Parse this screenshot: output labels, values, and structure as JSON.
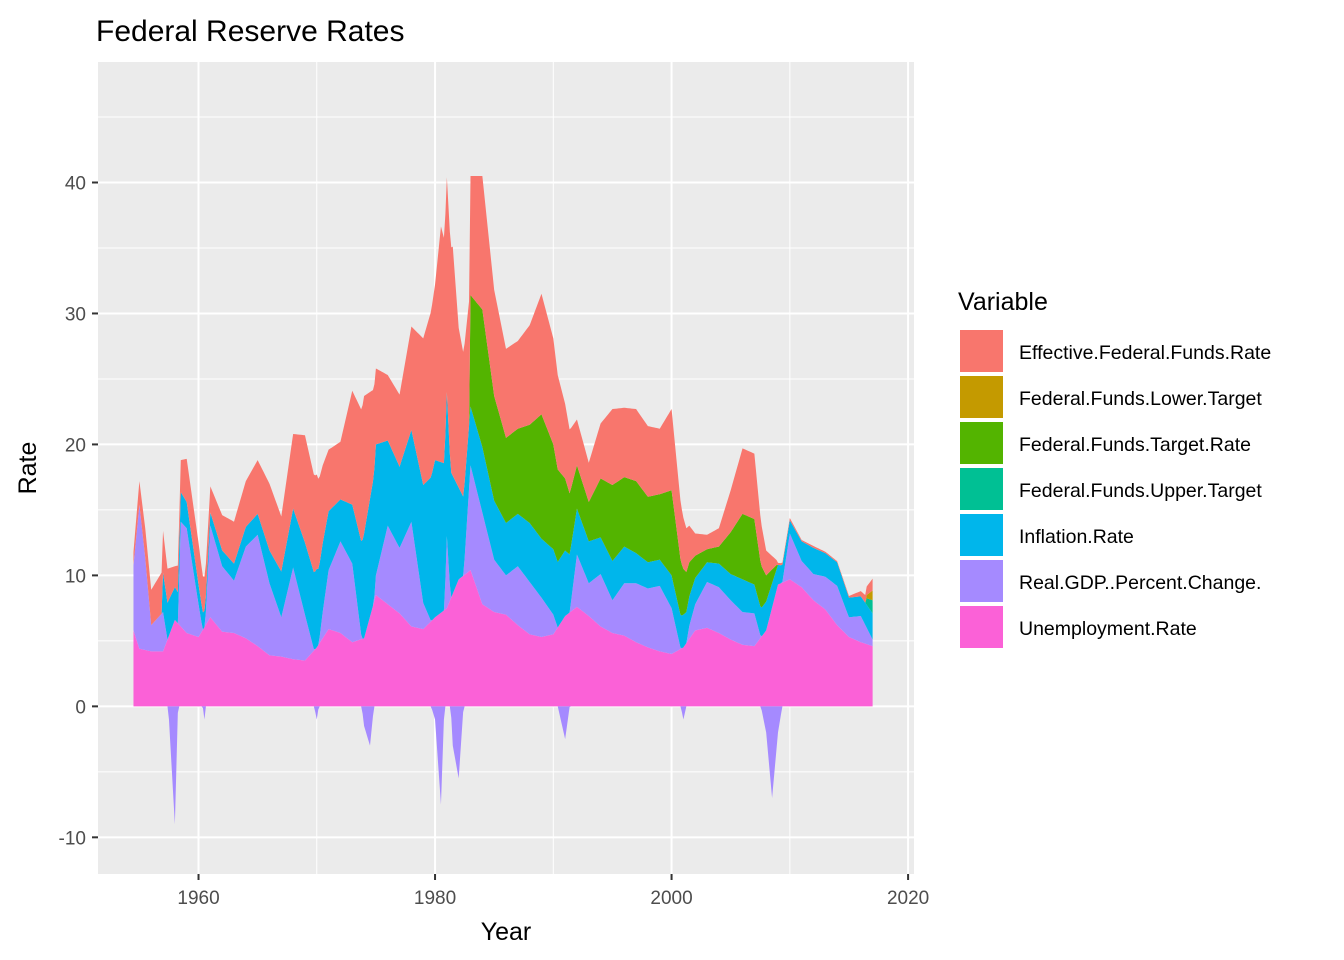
{
  "chart_data": {
    "type": "area",
    "stacked": true,
    "title": "Federal Reserve Rates",
    "xlabel": "Year",
    "ylabel": "Rate",
    "xlim": [
      1951.5,
      2020.5
    ],
    "ylim": [
      -12.8,
      49.2
    ],
    "x_ticks": [
      1960,
      1980,
      2000,
      2020
    ],
    "y_ticks": [
      -10,
      0,
      10,
      20,
      30,
      40
    ],
    "grid": true,
    "background": "#ebebeb",
    "legend": {
      "title": "Variable",
      "position": "right",
      "entries": [
        {
          "name": "Effective.Federal.Funds.Rate",
          "color": "#f8766d"
        },
        {
          "name": "Federal.Funds.Lower.Target",
          "color": "#c49a00"
        },
        {
          "name": "Federal.Funds.Target.Rate",
          "color": "#53b400"
        },
        {
          "name": "Federal.Funds.Upper.Target",
          "color": "#00c094"
        },
        {
          "name": "Inflation.Rate",
          "color": "#00b6eb"
        },
        {
          "name": "Real.GDP..Percent.Change.",
          "color": "#a58aff"
        },
        {
          "name": "Unemployment.Rate",
          "color": "#fb61d7"
        }
      ]
    },
    "series": [
      {
        "name": "Unemployment.Rate",
        "color": "#fb61d7",
        "x": [
          1954.5,
          1955,
          1956,
          1957,
          1958,
          1959,
          1960,
          1961,
          1962,
          1963,
          1964,
          1965,
          1966,
          1967,
          1968,
          1969,
          1970,
          1971,
          1972,
          1973,
          1974,
          1975,
          1976,
          1977,
          1978,
          1979,
          1980,
          1981,
          1982,
          1983,
          1984,
          1985,
          1986,
          1987,
          1988,
          1989,
          1990,
          1991,
          1992,
          1993,
          1994,
          1995,
          1996,
          1997,
          1998,
          1999,
          2000,
          2001,
          2002,
          2003,
          2004,
          2005,
          2006,
          2007,
          2008,
          2009,
          2010,
          2011,
          2012,
          2013,
          2014,
          2015,
          2016,
          2017
        ],
        "y": [
          5.8,
          4.4,
          4.2,
          4.2,
          6.6,
          5.6,
          5.3,
          6.8,
          5.7,
          5.6,
          5.2,
          4.6,
          3.9,
          3.8,
          3.6,
          3.5,
          4.5,
          5.9,
          5.6,
          4.9,
          5.2,
          8.5,
          7.8,
          7.1,
          6.1,
          5.9,
          6.8,
          7.5,
          9.7,
          10.4,
          7.8,
          7.2,
          7.0,
          6.2,
          5.5,
          5.3,
          5.5,
          6.9,
          7.6,
          6.9,
          6.1,
          5.6,
          5.4,
          4.9,
          4.5,
          4.2,
          4.0,
          4.5,
          5.8,
          6.0,
          5.6,
          5.1,
          4.7,
          4.6,
          5.8,
          9.3,
          9.7,
          9.1,
          8.1,
          7.4,
          6.2,
          5.3,
          4.9,
          4.6
        ]
      },
      {
        "name": "Real.GDP..Percent.Change.",
        "color": "#a58aff",
        "x": [
          1954.5,
          1955,
          1955.5,
          1956,
          1957,
          1957.5,
          1958,
          1958.5,
          1959,
          1960,
          1960.5,
          1961,
          1962,
          1963,
          1964,
          1965,
          1966,
          1967,
          1968,
          1969,
          1970,
          1970.5,
          1971,
          1972,
          1973,
          1974,
          1974.5,
          1975,
          1976,
          1977,
          1978,
          1979,
          1980,
          1980.5,
          1981,
          1981.5,
          1982,
          1983,
          1984,
          1985,
          1986,
          1987,
          1988,
          1989,
          1990,
          1991,
          1992,
          1993,
          1994,
          1995,
          1996,
          1997,
          1998,
          1999,
          2000,
          2001,
          2001.5,
          2002,
          2003,
          2004,
          2005,
          2006,
          2007,
          2008,
          2008.5,
          2009,
          2010,
          2011,
          2012,
          2013,
          2014,
          2015,
          2016,
          2017
        ],
        "y": [
          5.0,
          11.0,
          7.0,
          2.0,
          3.0,
          -1.0,
          -9.0,
          8.0,
          8.0,
          2.5,
          -1.0,
          7.0,
          5.0,
          4.0,
          7.0,
          8.5,
          5.5,
          3.0,
          7.0,
          3.5,
          -1.0,
          2.0,
          4.5,
          7.0,
          6.0,
          -1.5,
          -3.0,
          1.5,
          6.0,
          5.0,
          8.0,
          2.0,
          -1.0,
          -7.5,
          5.5,
          -3.0,
          -5.5,
          8.0,
          7.0,
          4.0,
          3.0,
          4.5,
          4.0,
          3.0,
          1.5,
          -2.5,
          4.0,
          2.5,
          4.0,
          2.5,
          4.0,
          4.5,
          4.5,
          5.0,
          3.5,
          -1.0,
          1.0,
          2.0,
          3.5,
          3.5,
          3.0,
          2.5,
          2.5,
          -2.0,
          -7.0,
          -2.0,
          3.5,
          2.0,
          2.0,
          2.5,
          3.0,
          1.5,
          2.0,
          0.5
        ]
      },
      {
        "name": "Inflation.Rate",
        "color": "#00b6eb",
        "x": [
          1957,
          1958,
          1959,
          1960,
          1961,
          1962,
          1963,
          1964,
          1965,
          1966,
          1967,
          1968,
          1969,
          1970,
          1971,
          1972,
          1973,
          1974,
          1975,
          1976,
          1977,
          1978,
          1979,
          1980,
          1981,
          1982,
          1983,
          1984,
          1985,
          1986,
          1987,
          1988,
          1989,
          1990,
          1991,
          1992,
          1993,
          1994,
          1995,
          1996,
          1997,
          1998,
          1999,
          2000,
          2001,
          2002,
          2003,
          2004,
          2005,
          2006,
          2007,
          2008,
          2009,
          2010,
          2011,
          2012,
          2013,
          2014,
          2015,
          2016,
          2017
        ],
        "y": [
          3.0,
          2.5,
          2.0,
          1.5,
          1.0,
          1.2,
          1.3,
          1.5,
          1.6,
          2.5,
          3.5,
          4.5,
          5.5,
          6.0,
          4.5,
          3.2,
          4.5,
          8.0,
          10.0,
          6.5,
          6.2,
          7.0,
          9.0,
          12.0,
          11.0,
          7.0,
          4.5,
          5.0,
          4.5,
          4.0,
          4.0,
          4.5,
          4.5,
          5.0,
          5.0,
          3.5,
          3.2,
          2.8,
          3.0,
          2.8,
          2.3,
          2.0,
          2.0,
          2.5,
          2.5,
          2.0,
          1.5,
          1.8,
          2.0,
          2.5,
          2.2,
          2.2,
          1.5,
          1.0,
          1.5,
          2.0,
          1.8,
          1.8,
          1.5,
          1.5,
          2.0
        ]
      },
      {
        "name": "Federal.Funds.Target.Rate",
        "color": "#53b400",
        "x": [
          1982.9,
          1983,
          1984,
          1985,
          1986,
          1987,
          1988,
          1989,
          1990,
          1991,
          1992,
          1993,
          1994,
          1995,
          1996,
          1997,
          1998,
          1999,
          2000,
          2001,
          2002,
          2003,
          2004,
          2005,
          2006,
          2007,
          2008,
          2008.9
        ],
        "y": [
          0,
          8.5,
          10.5,
          8.0,
          6.5,
          6.5,
          7.5,
          9.5,
          8.0,
          5.5,
          3.3,
          3.0,
          4.5,
          5.8,
          5.3,
          5.5,
          5.0,
          5.0,
          6.5,
          3.5,
          1.7,
          1.0,
          1.3,
          3.2,
          5.0,
          5.0,
          2.0,
          0.3
        ]
      },
      {
        "name": "Federal.Funds.Upper.Target",
        "color": "#00c094",
        "x": [
          2016.5,
          2017
        ],
        "y": [
          0.5,
          1.0
        ]
      },
      {
        "name": "Federal.Funds.Lower.Target",
        "color": "#c49a00",
        "x": [
          2016.5,
          2017
        ],
        "y": [
          0.25,
          0.75
        ]
      },
      {
        "name": "Effective.Federal.Funds.Rate",
        "color": "#f8766d",
        "x": [
          1954.5,
          1955,
          1956,
          1957,
          1958,
          1959,
          1960,
          1961,
          1962,
          1963,
          1964,
          1965,
          1966,
          1967,
          1968,
          1969,
          1970,
          1971,
          1972,
          1973,
          1974,
          1975,
          1976,
          1977,
          1978,
          1979,
          1980,
          1980.5,
          1981,
          1981.5,
          1982,
          1983,
          1984,
          1985,
          1986,
          1987,
          1988,
          1989,
          1990,
          1991,
          1992,
          1993,
          1994,
          1995,
          1996,
          1997,
          1998,
          1999,
          2000,
          2001,
          2002,
          2003,
          2004,
          2005,
          2006,
          2007,
          2008,
          2009,
          2010,
          2011,
          2012,
          2013,
          2014,
          2015,
          2016,
          2017
        ],
        "y": [
          1.0,
          1.8,
          2.7,
          3.2,
          1.6,
          3.3,
          3.2,
          2.0,
          2.7,
          3.2,
          3.5,
          4.1,
          5.1,
          4.2,
          5.7,
          8.2,
          7.2,
          4.7,
          4.4,
          8.7,
          10.5,
          5.8,
          5.0,
          5.5,
          7.9,
          11.2,
          13.4,
          18.0,
          16.4,
          17.5,
          12.2,
          9.1,
          10.2,
          8.1,
          6.8,
          6.7,
          7.6,
          9.2,
          8.1,
          5.7,
          3.5,
          3.0,
          4.2,
          5.8,
          5.3,
          5.5,
          5.4,
          5.0,
          6.2,
          3.9,
          1.7,
          1.1,
          1.4,
          3.2,
          5.0,
          5.0,
          1.9,
          0.16,
          0.18,
          0.1,
          0.14,
          0.11,
          0.09,
          0.13,
          0.4,
          0.9
        ]
      }
    ]
  }
}
